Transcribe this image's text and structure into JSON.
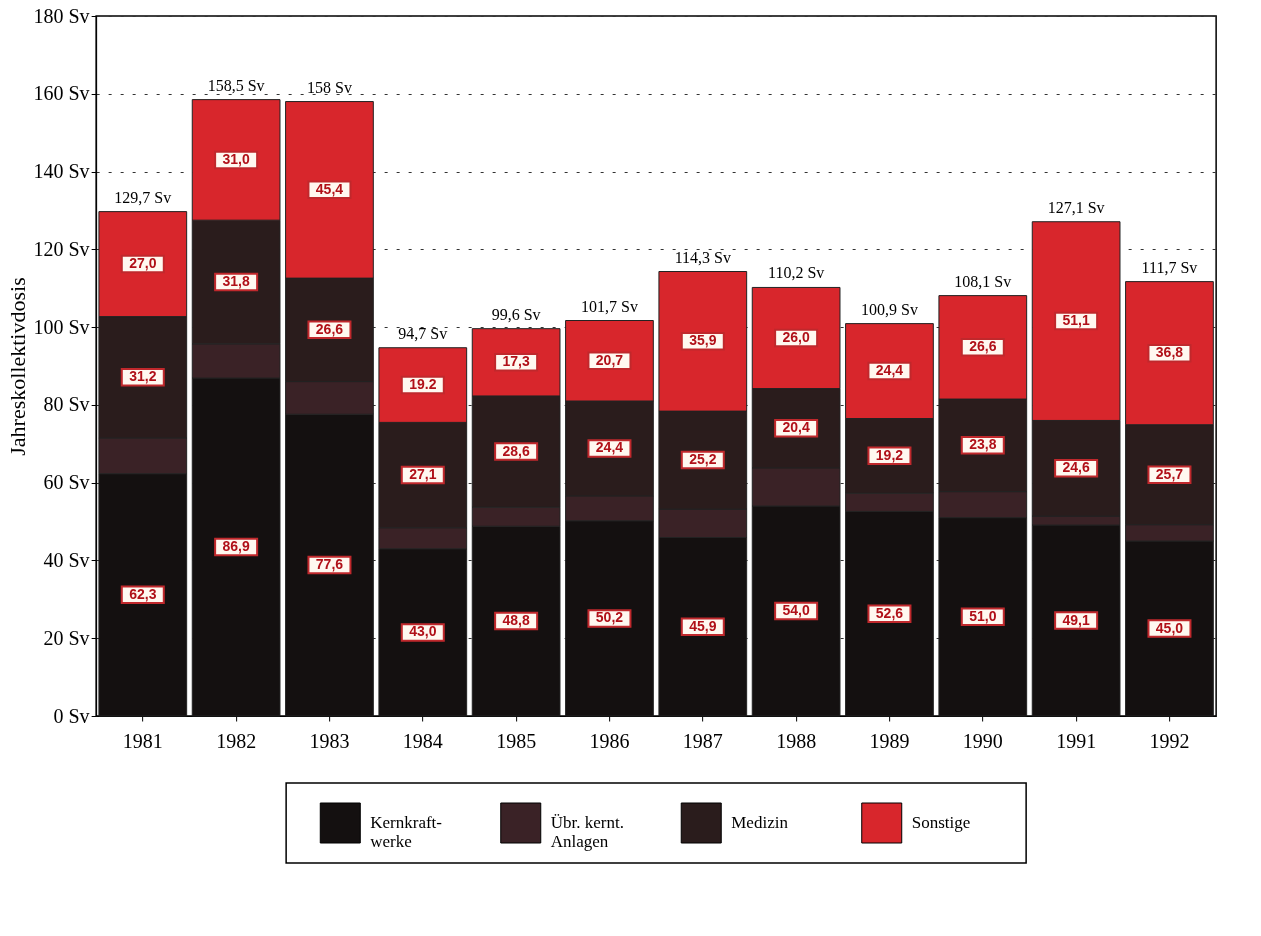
{
  "chart_data": {
    "type": "bar",
    "stacked": true,
    "ylabel": "Jahreskollektivdosis",
    "categories": [
      "1981",
      "1982",
      "1983",
      "1984",
      "1985",
      "1986",
      "1987",
      "1988",
      "1989",
      "1990",
      "1991",
      "1992"
    ],
    "series": [
      {
        "name": "Kernkraft-\nwerke",
        "color": "#141010",
        "values": [
          62.3,
          86.9,
          77.6,
          43.0,
          48.8,
          50.2,
          45.9,
          54.0,
          52.6,
          51.0,
          49.1,
          45.0
        ],
        "value_labels": [
          "62,3",
          "86,9",
          "77,6",
          "43,0",
          "48,8",
          "50,2",
          "45,9",
          "54,0",
          "52,6",
          "51,0",
          "49,1",
          "45,0"
        ]
      },
      {
        "name": "Übr. kernt.\nAnlagen",
        "color": "#3a2226",
        "values": [
          9.2,
          8.8,
          8.4,
          5.4,
          4.9,
          6.4,
          7.3,
          9.8,
          4.7,
          6.7,
          2.3,
          4.2
        ]
      },
      {
        "name": "Medizin",
        "color": "#2a1c1c",
        "values": [
          31.2,
          31.8,
          26.6,
          27.1,
          28.6,
          24.4,
          25.2,
          20.4,
          19.2,
          23.8,
          24.6,
          25.7
        ],
        "value_labels": [
          "31,2",
          "31,8",
          "26,6",
          "27,1",
          "28,6",
          "24,4",
          "25,2",
          "20,4",
          "19,2",
          "23,8",
          "24,6",
          "25,7"
        ]
      },
      {
        "name": "Sonstige",
        "color": "#d8262c",
        "values": [
          27.0,
          31.0,
          45.4,
          19.2,
          17.3,
          20.7,
          35.9,
          26.0,
          24.4,
          26.6,
          51.1,
          36.8
        ],
        "value_labels": [
          "27,0",
          "31,0",
          "45,4",
          "19.2",
          "17,3",
          "20,7",
          "35,9",
          "26,0",
          "24,4",
          "26,6",
          "51,1",
          "36,8"
        ]
      }
    ],
    "totals": [
      "129,7 Sv",
      "158,5 Sv",
      "158 Sv",
      "94,7 Sv",
      "99,6 Sv",
      "101,7 Sv",
      "114,3 Sv",
      "110,2 Sv",
      "100,9 Sv",
      "108,1 Sv",
      "127,1 Sv",
      "111,7 Sv"
    ],
    "ylim": [
      0,
      180
    ],
    "yticks": [
      {
        "value": 0,
        "label": "0 Sv"
      },
      {
        "value": 20,
        "label": "20 Sv"
      },
      {
        "value": 40,
        "label": "40 Sv"
      },
      {
        "value": 60,
        "label": "60 Sv"
      },
      {
        "value": 80,
        "label": "80 Sv"
      },
      {
        "value": 100,
        "label": "100 Sv"
      },
      {
        "value": 120,
        "label": "120 Sv"
      },
      {
        "value": 140,
        "label": "140 Sv"
      },
      {
        "value": 160,
        "label": "160 Sv"
      },
      {
        "value": 180,
        "label": "180 Sv"
      }
    ],
    "grid": "y",
    "legend": "bottom"
  }
}
